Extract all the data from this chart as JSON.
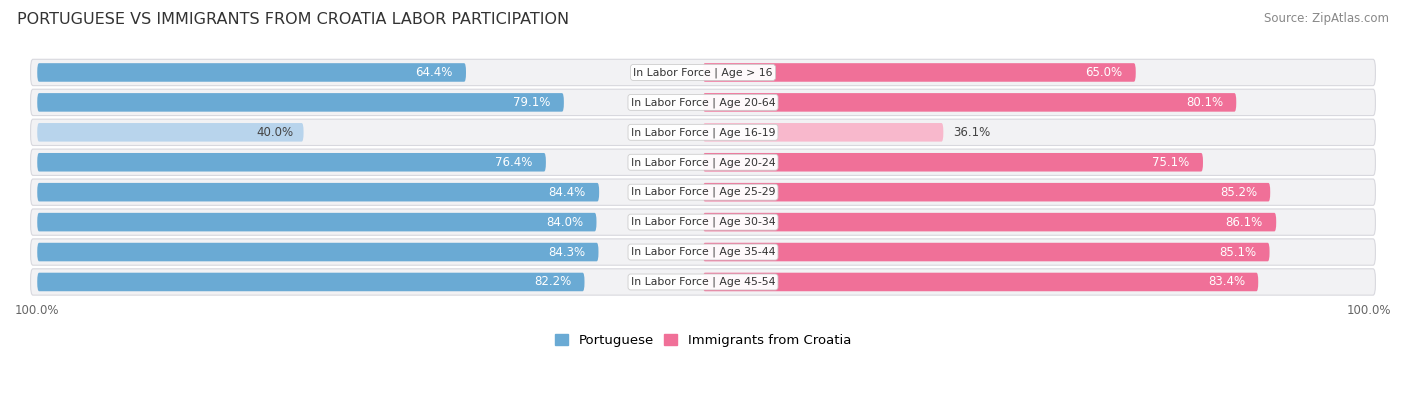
{
  "title": "PORTUGUESE VS IMMIGRANTS FROM CROATIA LABOR PARTICIPATION",
  "source": "Source: ZipAtlas.com",
  "categories": [
    "In Labor Force | Age > 16",
    "In Labor Force | Age 20-64",
    "In Labor Force | Age 16-19",
    "In Labor Force | Age 20-24",
    "In Labor Force | Age 25-29",
    "In Labor Force | Age 30-34",
    "In Labor Force | Age 35-44",
    "In Labor Force | Age 45-54"
  ],
  "portuguese": [
    64.4,
    79.1,
    40.0,
    76.4,
    84.4,
    84.0,
    84.3,
    82.2
  ],
  "croatia": [
    65.0,
    80.1,
    36.1,
    75.1,
    85.2,
    86.1,
    85.1,
    83.4
  ],
  "portuguese_color": "#6aaad4",
  "croatia_color": "#f07098",
  "portuguese_color_light": "#b8d4ec",
  "croatia_color_light": "#f8b8cc",
  "row_bg_color": "#f2f2f4",
  "row_border_color": "#d8d8de",
  "label_white": "#ffffff",
  "label_dark": "#444444",
  "title_fontsize": 11.5,
  "source_fontsize": 8.5,
  "bar_label_fontsize": 8.5,
  "cat_label_fontsize": 7.8,
  "legend_fontsize": 9.5,
  "axis_label_fontsize": 8.5,
  "max_value": 100.0
}
